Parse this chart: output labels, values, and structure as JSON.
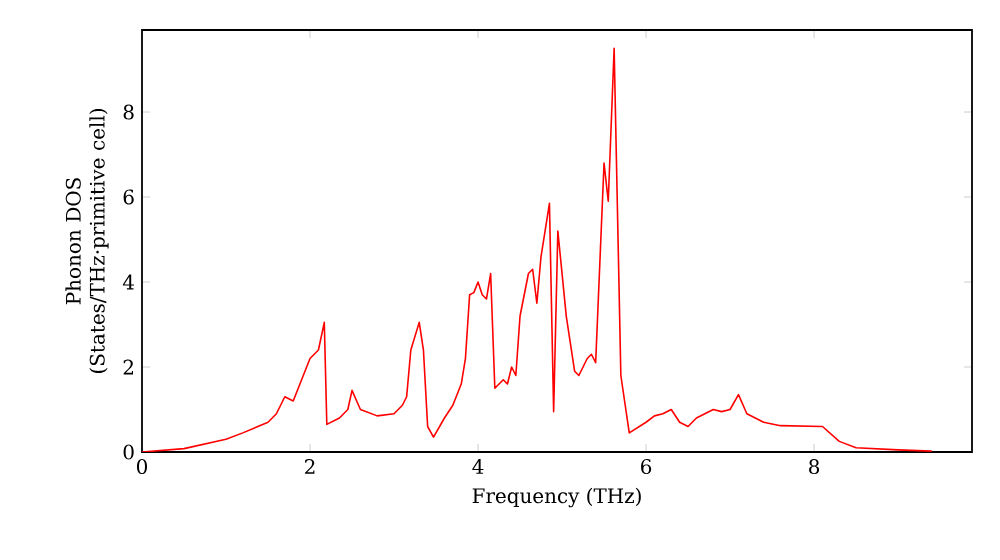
{
  "chart_data": {
    "type": "line",
    "xlabel": "Frequency (THz)",
    "ylabel": "Phonon DOS (States/THz·primitive cell)",
    "xlim": [
      0,
      9.88
    ],
    "ylim": [
      0,
      9.93
    ],
    "xticks": [
      0,
      2,
      4,
      6,
      8
    ],
    "yticks": [
      0,
      2,
      4,
      6,
      8
    ],
    "series": [
      {
        "color": "#ff0000",
        "x": [
          0,
          0.5,
          1.0,
          1.2,
          1.5,
          1.6,
          1.7,
          1.8,
          1.9,
          2.0,
          2.1,
          2.17,
          2.2,
          2.35,
          2.45,
          2.5,
          2.6,
          2.8,
          3.0,
          3.1,
          3.15,
          3.2,
          3.3,
          3.35,
          3.4,
          3.47,
          3.6,
          3.7,
          3.8,
          3.85,
          3.9,
          3.95,
          4.0,
          4.05,
          4.1,
          4.15,
          4.2,
          4.3,
          4.35,
          4.4,
          4.45,
          4.5,
          4.6,
          4.65,
          4.7,
          4.75,
          4.85,
          4.9,
          4.95,
          5.05,
          5.15,
          5.2,
          5.3,
          5.35,
          5.4,
          5.5,
          5.55,
          5.62,
          5.7,
          5.8,
          6.0,
          6.1,
          6.2,
          6.3,
          6.4,
          6.5,
          6.6,
          6.8,
          6.9,
          7.0,
          7.1,
          7.2,
          7.4,
          7.6,
          8.1,
          8.3,
          8.5,
          9.0,
          9.4
        ],
        "values": [
          0,
          0.08,
          0.3,
          0.45,
          0.7,
          0.9,
          1.3,
          1.2,
          1.7,
          2.2,
          2.4,
          3.05,
          0.65,
          0.8,
          1.0,
          1.45,
          1.0,
          0.85,
          0.9,
          1.1,
          1.3,
          2.4,
          3.05,
          2.4,
          0.6,
          0.35,
          0.8,
          1.1,
          1.6,
          2.2,
          3.7,
          3.75,
          4.0,
          3.7,
          3.6,
          4.2,
          1.5,
          1.7,
          1.6,
          2.0,
          1.8,
          3.2,
          4.2,
          4.3,
          3.5,
          4.6,
          5.85,
          0.95,
          5.2,
          3.2,
          1.9,
          1.8,
          2.2,
          2.3,
          2.1,
          6.8,
          5.9,
          9.5,
          1.8,
          0.45,
          0.7,
          0.85,
          0.9,
          1.0,
          0.7,
          0.6,
          0.8,
          1.0,
          0.95,
          1.0,
          1.35,
          0.9,
          0.7,
          0.62,
          0.6,
          0.25,
          0.1,
          0.05,
          0.02
        ]
      }
    ]
  }
}
